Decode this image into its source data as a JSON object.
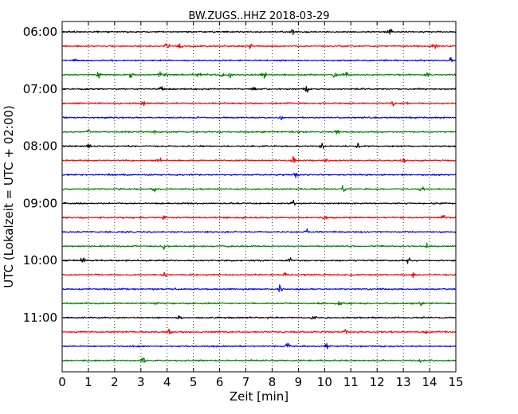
{
  "chart_data": {
    "type": "line",
    "title": "BW.ZUGS..HHZ 2018-03-29",
    "xlabel": "Zeit  [min]",
    "ylabel": "UTC (Lokalzeit = UTC + 02:00)",
    "xlim": [
      0,
      15
    ],
    "x_ticks": [
      0,
      1,
      2,
      3,
      4,
      5,
      6,
      7,
      8,
      9,
      10,
      11,
      12,
      13,
      14,
      15
    ],
    "x_tick_labels": [
      "0",
      "1",
      "2",
      "3",
      "4",
      "5",
      "6",
      "7",
      "8",
      "9",
      "10",
      "11",
      "12",
      "13",
      "14",
      "15"
    ],
    "grid": "vertical dotted lines at each minute",
    "row_interval_minutes": 15,
    "series_colors": [
      "#000000",
      "#ff0000",
      "#0000ff",
      "#008000"
    ],
    "y_tick_labels": [
      "06:00",
      "07:00",
      "08:00",
      "09:00",
      "10:00",
      "11:00"
    ],
    "traces": [
      {
        "start": "06:00",
        "color": "#000000",
        "events": [
          8.75,
          12.5
        ]
      },
      {
        "start": "06:15",
        "color": "#ff0000",
        "events": [
          4.0,
          4.5,
          7.2,
          14.2
        ]
      },
      {
        "start": "06:30",
        "color": "#0000ff",
        "events": [
          0.5,
          14.8
        ]
      },
      {
        "start": "06:45",
        "color": "#008000",
        "events": [
          1.4,
          2.6,
          3.7,
          4.0,
          5.2,
          6.1,
          6.4,
          7.7,
          10.4,
          10.8,
          13.9
        ]
      },
      {
        "start": "07:00",
        "color": "#000000",
        "events": [
          3.8,
          7.3,
          9.3
        ]
      },
      {
        "start": "07:15",
        "color": "#ff0000",
        "events": [
          3.1,
          12.6,
          13.1
        ]
      },
      {
        "start": "07:30",
        "color": "#0000ff",
        "events": [
          8.3
        ]
      },
      {
        "start": "07:45",
        "color": "#008000",
        "events": [
          1.0,
          3.5,
          10.5
        ]
      },
      {
        "start": "08:00",
        "color": "#000000",
        "events": [
          1.0,
          9.9,
          11.3
        ]
      },
      {
        "start": "08:15",
        "color": "#ff0000",
        "events": [
          3.7,
          8.8,
          10.0,
          13.0
        ]
      },
      {
        "start": "08:30",
        "color": "#0000ff",
        "events": [
          8.9
        ]
      },
      {
        "start": "08:45",
        "color": "#008000",
        "events": [
          3.5,
          10.7,
          13.7
        ]
      },
      {
        "start": "09:00",
        "color": "#000000",
        "events": [
          8.8
        ]
      },
      {
        "start": "09:15",
        "color": "#ff0000",
        "events": [
          3.9,
          10.0,
          14.5
        ]
      },
      {
        "start": "09:30",
        "color": "#0000ff",
        "events": [
          9.3
        ]
      },
      {
        "start": "09:45",
        "color": "#008000",
        "events": [
          3.9,
          13.9
        ]
      },
      {
        "start": "10:00",
        "color": "#000000",
        "events": [
          0.8,
          8.7,
          13.2
        ]
      },
      {
        "start": "10:15",
        "color": "#ff0000",
        "events": [
          3.9,
          8.5,
          13.4
        ]
      },
      {
        "start": "10:30",
        "color": "#0000ff",
        "events": [
          8.3
        ]
      },
      {
        "start": "10:45",
        "color": "#008000",
        "events": [
          3.6,
          10.6,
          13.7
        ]
      },
      {
        "start": "11:00",
        "color": "#000000",
        "events": [
          4.5,
          9.6,
          10.1
        ]
      },
      {
        "start": "11:15",
        "color": "#ff0000",
        "events": [
          4.1,
          10.8,
          13.9
        ]
      },
      {
        "start": "11:30",
        "color": "#0000ff",
        "events": [
          8.6,
          10.1
        ]
      },
      {
        "start": "11:45",
        "color": "#008000",
        "events": [
          3.1,
          13.7
        ]
      }
    ]
  }
}
